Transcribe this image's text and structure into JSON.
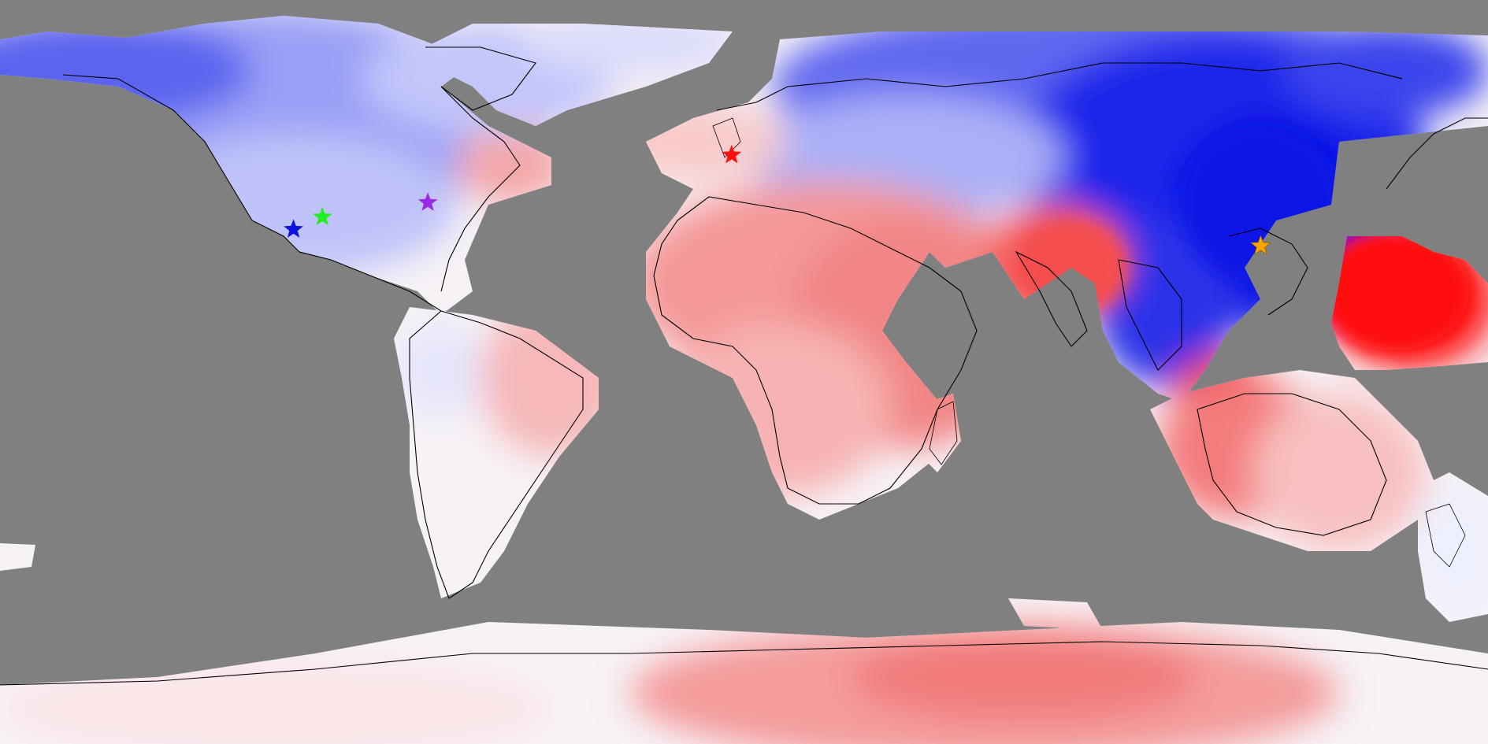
{
  "map": {
    "projection": "equirectangular",
    "colors": {
      "background": "#808080",
      "blue_deep": "#0a14e6",
      "blue_mid": "#5a64f0",
      "blue_light": "#b4b9f8",
      "neutral": "#f5f5fb",
      "red_light": "#f8c4c4",
      "red_mid": "#f28a8a",
      "red_deep": "#ff1414",
      "coastline": "#000000"
    }
  },
  "markers": [
    {
      "id": "marker-blue",
      "color": "#1010e0",
      "lon": -109.0,
      "lat": 34.5
    },
    {
      "id": "marker-green",
      "color": "#22ee22",
      "lon": -102.0,
      "lat": 37.5
    },
    {
      "id": "marker-purple",
      "color": "#9a2be2",
      "lon": -76.5,
      "lat": 41.0
    },
    {
      "id": "marker-red",
      "color": "#ff1010",
      "lon": -3.0,
      "lat": 52.5
    },
    {
      "id": "marker-orange",
      "color": "#ffa500",
      "lon": 125.0,
      "lat": 30.5
    }
  ]
}
